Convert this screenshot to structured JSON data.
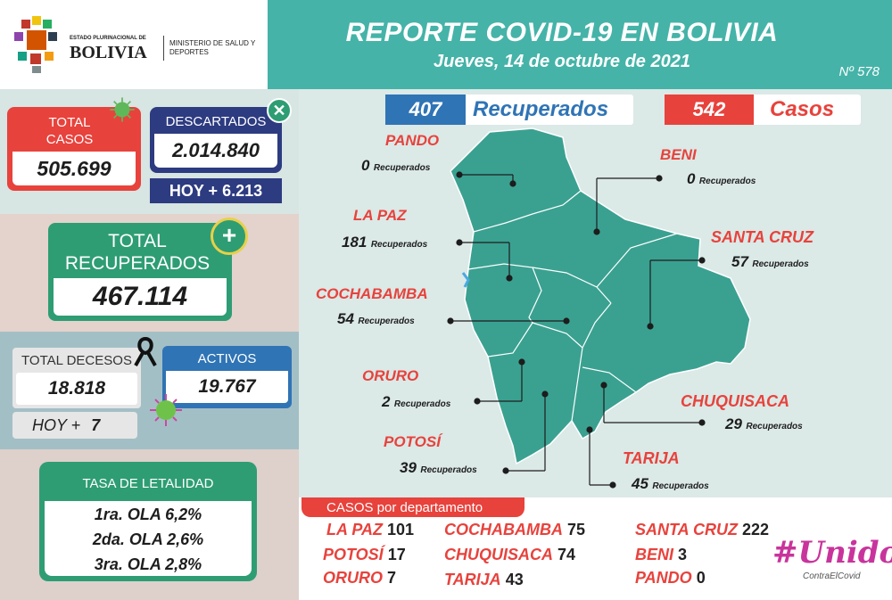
{
  "header": {
    "title": "REPORTE COVID-19 EN BOLIVIA",
    "date": "Jueves, 14 de octubre de 2021",
    "report_number": "Nº 578"
  },
  "logo": {
    "line1": "ESTADO PLURINACIONAL DE",
    "line2": "BOLIVIA",
    "ministry": "MINISTERIO DE SALUD Y DEPORTES"
  },
  "stats": {
    "total_casos_label": "TOTAL CASOS",
    "total_casos_value": "505.699",
    "descartados_label": "DESCARTADOS",
    "descartados_value": "2.014.840",
    "descartados_hoy": "HOY + 6.213",
    "total_recuperados_label": "TOTAL RECUPERADOS",
    "total_recuperados_value": "467.114",
    "total_decesos_label": "TOTAL DECESOS",
    "total_decesos_value": "18.818",
    "decesos_hoy_label": "HOY +",
    "decesos_hoy_value": "7",
    "activos_label": "ACTIVOS",
    "activos_value": "19.767"
  },
  "letalidad": {
    "title": "TASA DE LETALIDAD",
    "rows": [
      "1ra. OLA 6,2%",
      "2da. OLA 2,6%",
      "3ra. OLA 2,8%"
    ]
  },
  "daily": {
    "recuperados_value": "407",
    "recuperados_label": "Recuperados",
    "casos_value": "542",
    "casos_label": "Casos"
  },
  "recovered_word": "Recuperados",
  "departments": [
    {
      "name": "PANDO",
      "recovered": "0"
    },
    {
      "name": "BENI",
      "recovered": "0"
    },
    {
      "name": "LA PAZ",
      "recovered": "181"
    },
    {
      "name": "SANTA CRUZ",
      "recovered": "57"
    },
    {
      "name": "COCHABAMBA",
      "recovered": "54"
    },
    {
      "name": "ORURO",
      "recovered": "2"
    },
    {
      "name": "CHUQUISACA",
      "recovered": "29"
    },
    {
      "name": "POTOSÍ",
      "recovered": "39"
    },
    {
      "name": "TARIJA",
      "recovered": "45"
    }
  ],
  "cases_by_department": {
    "title": "CASOS por departamento",
    "items": [
      {
        "name": "LA PAZ",
        "value": "101"
      },
      {
        "name": "POTOSÍ",
        "value": "17"
      },
      {
        "name": "ORURO",
        "value": "7"
      },
      {
        "name": "COCHABAMBA",
        "value": "75"
      },
      {
        "name": "CHUQUISACA",
        "value": "74"
      },
      {
        "name": "TARIJA",
        "value": "43"
      },
      {
        "name": "SANTA CRUZ",
        "value": "222"
      },
      {
        "name": "BENI",
        "value": "3"
      },
      {
        "name": "PANDO",
        "value": "0"
      }
    ]
  },
  "campaign": {
    "title": "#Unidos",
    "subtitle": "ContraElCovid"
  },
  "colors": {
    "teal": "#45b3a8",
    "red": "#e8423c",
    "navy": "#2d3b80",
    "green": "#2e9d74",
    "blue": "#2f74b5",
    "map": "#3aa191"
  }
}
